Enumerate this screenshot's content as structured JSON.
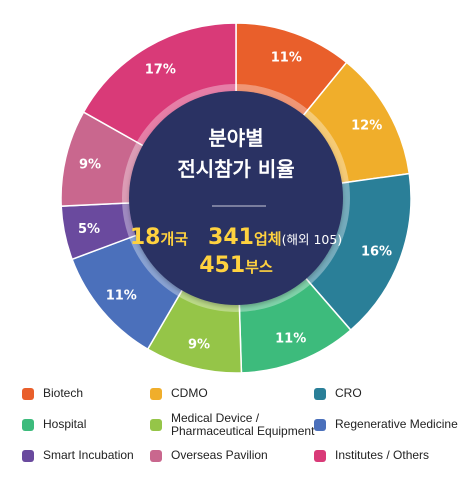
{
  "chart_data": {
    "type": "pie",
    "title": [
      "분야별",
      "전시참가 비율"
    ],
    "categories": [
      "Biotech",
      "CDMO",
      "CRO",
      "Hospital",
      "Medical Device / Pharmaceutical Equipment",
      "Regenerative Medicine",
      "Smart Incubation",
      "Overseas Pavilion",
      "Institutes / Others"
    ],
    "ring_order": [
      "Biotech",
      "CDMO",
      "CRO",
      "Hospital",
      "Medical Device / Pharmaceutical Equipment",
      "Regenerative Medicine",
      "Smart Incubation",
      "Overseas Pavilion",
      "Institutes / Others"
    ],
    "values": [
      11,
      12,
      16,
      11,
      9,
      11,
      5,
      9,
      17
    ],
    "value_labels": [
      "11%",
      "12%",
      "16%",
      "11%",
      "9%",
      "11%",
      "5%",
      "9%",
      "17%"
    ],
    "colors": [
      "#e95f2b",
      "#f0ae2b",
      "#2a7f98",
      "#3dbb7c",
      "#95c548",
      "#4b70bb",
      "#6a4a9e",
      "#c9678e",
      "#d93a78"
    ],
    "legend_position": "bottom",
    "legend_lines": [
      [
        "Biotech"
      ],
      [
        "CDMO"
      ],
      [
        "CRO"
      ],
      [
        "Hospital"
      ],
      [
        "Medical Device /",
        "Pharmaceutical Equipment"
      ],
      [
        "Regenerative Medicine"
      ],
      [
        "Smart Incubation"
      ],
      [
        "Overseas Pavilion"
      ],
      [
        "Institutes / Others"
      ]
    ]
  },
  "summary": {
    "countries_number": "18",
    "countries_unit": "개국",
    "companies_number": "341",
    "companies_unit": "업체",
    "companies_note": "(해외 105)",
    "booths_number": "451",
    "booths_unit": "부스"
  },
  "colors": {
    "center_fill": "#2b3163",
    "highlight": "#ffd23f",
    "text_white": "#ffffff"
  }
}
